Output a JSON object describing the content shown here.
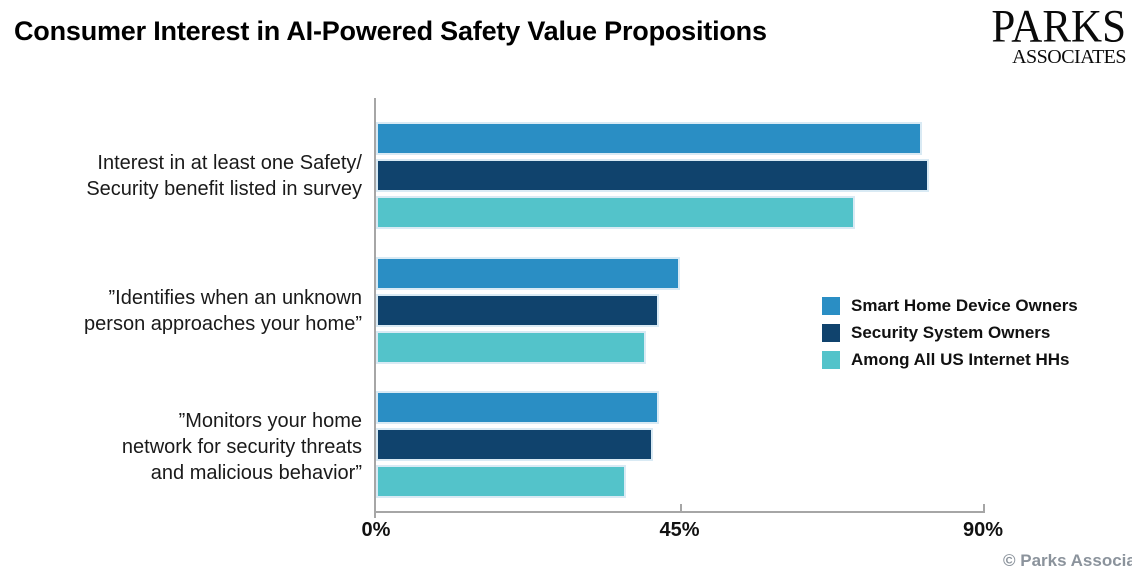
{
  "header": {
    "title": "Consumer Interest in AI-Powered Safety Value Propositions",
    "logo": {
      "line1": "PARKS",
      "line2": "ASSOCIATES"
    }
  },
  "footer": {
    "copyright": "© Parks Associa"
  },
  "chart_data": {
    "type": "bar",
    "orientation": "horizontal",
    "title": "Consumer Interest in AI-Powered Safety Value Propositions",
    "categories": [
      "Interest in at least one Safety/\nSecurity benefit listed in survey",
      "”Identifies when an unknown\nperson approaches your home”",
      "”Monitors your home\nnetwork for security threats\nand malicious behavior”"
    ],
    "series": [
      {
        "name": "Smart Home Device Owners",
        "color": "#2a8ec4",
        "values": [
          81,
          45,
          42
        ]
      },
      {
        "name": "Security System Owners",
        "color": "#10436d",
        "values": [
          82,
          42,
          41
        ]
      },
      {
        "name": "Among All US Internet HHs",
        "color": "#53c3ca",
        "values": [
          71,
          40,
          37
        ]
      }
    ],
    "x_axis": {
      "tick_labels": [
        "0%",
        "45%",
        "90%"
      ],
      "tick_values": [
        0,
        45,
        90
      ],
      "range": [
        0,
        90
      ]
    },
    "unit": "percent",
    "grid": false,
    "legend_position": "right"
  },
  "style": {
    "axis_color": "#a6a6a6",
    "bar_border_color": "#d9eaf4",
    "footer_color": "#8b939c"
  }
}
